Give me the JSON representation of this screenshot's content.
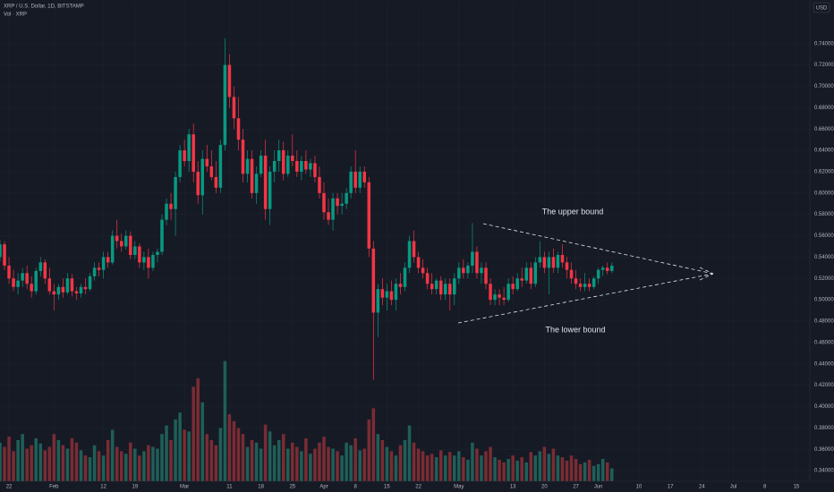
{
  "chart_data": {
    "type": "candlestick",
    "title": "XRP / U.S. Dollar, 1D, BITSTAMP",
    "subtitle": "Vol · XRP",
    "currency": "USD",
    "annotations": [
      "The upper bound",
      "The lower bound"
    ],
    "up_color": "#089981",
    "down_color": "#f23645",
    "volume_up_color": "#1f5f58",
    "volume_down_color": "#7a2c33",
    "grid": true,
    "xlim": [
      0,
      180
    ],
    "xticks": [
      {
        "value": 2,
        "label": "22"
      },
      {
        "value": 12,
        "label": "Feb"
      },
      {
        "value": 23,
        "label": "12"
      },
      {
        "value": 30,
        "label": "19"
      },
      {
        "value": 41,
        "label": "Mar"
      },
      {
        "value": 51,
        "label": "11"
      },
      {
        "value": 58,
        "label": "18"
      },
      {
        "value": 65,
        "label": "25"
      },
      {
        "value": 72,
        "label": "Apr"
      },
      {
        "value": 79,
        "label": "8"
      },
      {
        "value": 86,
        "label": "15"
      },
      {
        "value": 93,
        "label": "22"
      },
      {
        "value": 102,
        "label": "May"
      },
      {
        "value": 114,
        "label": "13"
      },
      {
        "value": 121,
        "label": "20"
      },
      {
        "value": 128,
        "label": "27"
      },
      {
        "value": 133,
        "label": "Jun"
      },
      {
        "value": 142,
        "label": "10"
      },
      {
        "value": 149,
        "label": "17"
      },
      {
        "value": 156,
        "label": "24"
      },
      {
        "value": 163,
        "label": "Jul"
      },
      {
        "value": 170,
        "label": "8"
      },
      {
        "value": 177,
        "label": "15"
      }
    ],
    "ylim": [
      0.33,
      0.78
    ],
    "yticks": [
      {
        "value": 0.34,
        "label": "0.34000"
      },
      {
        "value": 0.36,
        "label": "0.36000"
      },
      {
        "value": 0.38,
        "label": "0.38000"
      },
      {
        "value": 0.4,
        "label": "0.40000"
      },
      {
        "value": 0.42,
        "label": "0.42000"
      },
      {
        "value": 0.44,
        "label": "0.44000"
      },
      {
        "value": 0.46,
        "label": "0.46000"
      },
      {
        "value": 0.48,
        "label": "0.48000"
      },
      {
        "value": 0.5,
        "label": "0.50000"
      },
      {
        "value": 0.52,
        "label": "0.52000"
      },
      {
        "value": 0.54,
        "label": "0.54000"
      },
      {
        "value": 0.56,
        "label": "0.56000"
      },
      {
        "value": 0.58,
        "label": "0.58000"
      },
      {
        "value": 0.6,
        "label": "0.60000"
      },
      {
        "value": 0.62,
        "label": "0.62000"
      },
      {
        "value": 0.64,
        "label": "0.64000"
      },
      {
        "value": 0.66,
        "label": "0.66000"
      },
      {
        "value": 0.68,
        "label": "0.68000"
      },
      {
        "value": 0.7,
        "label": "0.70000"
      },
      {
        "value": 0.72,
        "label": "0.72000"
      },
      {
        "value": 0.74,
        "label": "0.74000"
      }
    ],
    "volume_lim": [
      0,
      300
    ],
    "ohlc": [
      [
        0.54,
        0.556,
        0.536,
        0.552
      ],
      [
        0.552,
        0.555,
        0.528,
        0.532
      ],
      [
        0.532,
        0.54,
        0.515,
        0.52
      ],
      [
        0.52,
        0.528,
        0.508,
        0.512
      ],
      [
        0.512,
        0.525,
        0.505,
        0.518
      ],
      [
        0.518,
        0.53,
        0.512,
        0.525
      ],
      [
        0.525,
        0.532,
        0.51,
        0.515
      ],
      [
        0.515,
        0.522,
        0.502,
        0.508
      ],
      [
        0.508,
        0.53,
        0.505,
        0.527
      ],
      [
        0.527,
        0.54,
        0.522,
        0.535
      ],
      [
        0.535,
        0.538,
        0.515,
        0.52
      ],
      [
        0.52,
        0.53,
        0.505,
        0.508
      ],
      [
        0.508,
        0.515,
        0.49,
        0.505
      ],
      [
        0.505,
        0.515,
        0.5,
        0.512
      ],
      [
        0.512,
        0.52,
        0.502,
        0.507
      ],
      [
        0.507,
        0.525,
        0.505,
        0.52
      ],
      [
        0.52,
        0.524,
        0.503,
        0.508
      ],
      [
        0.508,
        0.512,
        0.5,
        0.506
      ],
      [
        0.506,
        0.515,
        0.502,
        0.512
      ],
      [
        0.512,
        0.52,
        0.505,
        0.51
      ],
      [
        0.51,
        0.525,
        0.508,
        0.522
      ],
      [
        0.522,
        0.535,
        0.518,
        0.53
      ],
      [
        0.53,
        0.535,
        0.522,
        0.528
      ],
      [
        0.528,
        0.545,
        0.52,
        0.54
      ],
      [
        0.54,
        0.545,
        0.53,
        0.535
      ],
      [
        0.535,
        0.565,
        0.533,
        0.56
      ],
      [
        0.56,
        0.575,
        0.548,
        0.555
      ],
      [
        0.555,
        0.562,
        0.545,
        0.55
      ],
      [
        0.55,
        0.565,
        0.547,
        0.56
      ],
      [
        0.56,
        0.564,
        0.538,
        0.542
      ],
      [
        0.542,
        0.555,
        0.538,
        0.55
      ],
      [
        0.55,
        0.553,
        0.53,
        0.535
      ],
      [
        0.535,
        0.545,
        0.528,
        0.54
      ],
      [
        0.54,
        0.548,
        0.52,
        0.53
      ],
      [
        0.53,
        0.545,
        0.527,
        0.542
      ],
      [
        0.542,
        0.548,
        0.535,
        0.545
      ],
      [
        0.545,
        0.58,
        0.542,
        0.575
      ],
      [
        0.575,
        0.595,
        0.57,
        0.59
      ],
      [
        0.59,
        0.6,
        0.575,
        0.585
      ],
      [
        0.585,
        0.62,
        0.56,
        0.615
      ],
      [
        0.615,
        0.645,
        0.61,
        0.64
      ],
      [
        0.64,
        0.65,
        0.625,
        0.63
      ],
      [
        0.63,
        0.66,
        0.62,
        0.655
      ],
      [
        0.655,
        0.665,
        0.61,
        0.62
      ],
      [
        0.62,
        0.63,
        0.59,
        0.598
      ],
      [
        0.598,
        0.64,
        0.58,
        0.632
      ],
      [
        0.632,
        0.645,
        0.62,
        0.625
      ],
      [
        0.625,
        0.64,
        0.612,
        0.615
      ],
      [
        0.615,
        0.63,
        0.6,
        0.605
      ],
      [
        0.605,
        0.65,
        0.6,
        0.645
      ],
      [
        0.645,
        0.745,
        0.64,
        0.72
      ],
      [
        0.72,
        0.73,
        0.68,
        0.69
      ],
      [
        0.69,
        0.7,
        0.66,
        0.67
      ],
      [
        0.67,
        0.69,
        0.64,
        0.65
      ],
      [
        0.65,
        0.66,
        0.61,
        0.618
      ],
      [
        0.618,
        0.64,
        0.61,
        0.632
      ],
      [
        0.632,
        0.64,
        0.595,
        0.6
      ],
      [
        0.6,
        0.625,
        0.59,
        0.618
      ],
      [
        0.618,
        0.64,
        0.615,
        0.635
      ],
      [
        0.635,
        0.65,
        0.575,
        0.585
      ],
      [
        0.585,
        0.625,
        0.57,
        0.62
      ],
      [
        0.62,
        0.64,
        0.61,
        0.63
      ],
      [
        0.63,
        0.65,
        0.62,
        0.64
      ],
      [
        0.64,
        0.648,
        0.612,
        0.618
      ],
      [
        0.618,
        0.64,
        0.615,
        0.635
      ],
      [
        0.635,
        0.655,
        0.625,
        0.63
      ],
      [
        0.63,
        0.64,
        0.615,
        0.62
      ],
      [
        0.62,
        0.635,
        0.612,
        0.63
      ],
      [
        0.63,
        0.64,
        0.618,
        0.622
      ],
      [
        0.622,
        0.632,
        0.615,
        0.628
      ],
      [
        0.628,
        0.635,
        0.61,
        0.615
      ],
      [
        0.615,
        0.625,
        0.595,
        0.6
      ],
      [
        0.6,
        0.61,
        0.575,
        0.582
      ],
      [
        0.582,
        0.595,
        0.57,
        0.575
      ],
      [
        0.575,
        0.6,
        0.565,
        0.595
      ],
      [
        0.595,
        0.6,
        0.58,
        0.588
      ],
      [
        0.588,
        0.6,
        0.58,
        0.59
      ],
      [
        0.59,
        0.605,
        0.585,
        0.6
      ],
      [
        0.6,
        0.625,
        0.595,
        0.62
      ],
      [
        0.62,
        0.64,
        0.6,
        0.605
      ],
      [
        0.605,
        0.625,
        0.6,
        0.62
      ],
      [
        0.62,
        0.625,
        0.605,
        0.61
      ],
      [
        0.61,
        0.615,
        0.54,
        0.548
      ],
      [
        0.548,
        0.555,
        0.425,
        0.488
      ],
      [
        0.488,
        0.515,
        0.465,
        0.51
      ],
      [
        0.51,
        0.52,
        0.495,
        0.502
      ],
      [
        0.502,
        0.515,
        0.49,
        0.508
      ],
      [
        0.508,
        0.518,
        0.495,
        0.5
      ],
      [
        0.5,
        0.52,
        0.49,
        0.515
      ],
      [
        0.515,
        0.525,
        0.505,
        0.512
      ],
      [
        0.512,
        0.535,
        0.508,
        0.53
      ],
      [
        0.53,
        0.56,
        0.525,
        0.555
      ],
      [
        0.555,
        0.565,
        0.535,
        0.54
      ],
      [
        0.54,
        0.545,
        0.525,
        0.53
      ],
      [
        0.53,
        0.538,
        0.52,
        0.525
      ],
      [
        0.525,
        0.53,
        0.51,
        0.515
      ],
      [
        0.515,
        0.525,
        0.505,
        0.51
      ],
      [
        0.51,
        0.52,
        0.505,
        0.518
      ],
      [
        0.518,
        0.522,
        0.5,
        0.505
      ],
      [
        0.505,
        0.52,
        0.5,
        0.515
      ],
      [
        0.515,
        0.52,
        0.49,
        0.505
      ],
      [
        0.505,
        0.525,
        0.495,
        0.52
      ],
      [
        0.52,
        0.535,
        0.515,
        0.53
      ],
      [
        0.53,
        0.538,
        0.52,
        0.525
      ],
      [
        0.525,
        0.535,
        0.52,
        0.532
      ],
      [
        0.532,
        0.572,
        0.525,
        0.545
      ],
      [
        0.545,
        0.55,
        0.52,
        0.525
      ],
      [
        0.525,
        0.535,
        0.515,
        0.53
      ],
      [
        0.53,
        0.535,
        0.51,
        0.515
      ],
      [
        0.515,
        0.52,
        0.495,
        0.5
      ],
      [
        0.5,
        0.51,
        0.495,
        0.505
      ],
      [
        0.505,
        0.51,
        0.495,
        0.502
      ],
      [
        0.502,
        0.512,
        0.495,
        0.5
      ],
      [
        0.5,
        0.52,
        0.498,
        0.515
      ],
      [
        0.515,
        0.522,
        0.505,
        0.51
      ],
      [
        0.51,
        0.525,
        0.508,
        0.52
      ],
      [
        0.52,
        0.53,
        0.512,
        0.518
      ],
      [
        0.518,
        0.535,
        0.515,
        0.53
      ],
      [
        0.53,
        0.535,
        0.51,
        0.515
      ],
      [
        0.515,
        0.54,
        0.512,
        0.535
      ],
      [
        0.535,
        0.555,
        0.53,
        0.54
      ],
      [
        0.54,
        0.545,
        0.525,
        0.53
      ],
      [
        0.53,
        0.545,
        0.505,
        0.54
      ],
      [
        0.54,
        0.548,
        0.525,
        0.53
      ],
      [
        0.53,
        0.545,
        0.525,
        0.542
      ],
      [
        0.542,
        0.552,
        0.53,
        0.535
      ],
      [
        0.535,
        0.54,
        0.52,
        0.528
      ],
      [
        0.528,
        0.535,
        0.515,
        0.52
      ],
      [
        0.52,
        0.528,
        0.51,
        0.515
      ],
      [
        0.515,
        0.52,
        0.508,
        0.512
      ],
      [
        0.512,
        0.525,
        0.508,
        0.515
      ],
      [
        0.515,
        0.52,
        0.508,
        0.512
      ],
      [
        0.512,
        0.522,
        0.51,
        0.52
      ],
      [
        0.52,
        0.53,
        0.515,
        0.528
      ],
      [
        0.528,
        0.532,
        0.522,
        0.53
      ],
      [
        0.53,
        0.535,
        0.524,
        0.527
      ],
      [
        0.527,
        0.535,
        0.525,
        0.532
      ]
    ],
    "volume": [
      45,
      40,
      52,
      35,
      48,
      55,
      38,
      42,
      50,
      44,
      36,
      40,
      55,
      48,
      42,
      38,
      50,
      45,
      36,
      30,
      28,
      42,
      35,
      30,
      48,
      60,
      40,
      35,
      32,
      45,
      38,
      30,
      35,
      42,
      40,
      38,
      55,
      65,
      48,
      72,
      80,
      60,
      58,
      110,
      120,
      92,
      55,
      48,
      42,
      62,
      140,
      78,
      70,
      62,
      55,
      40,
      48,
      45,
      38,
      66,
      58,
      42,
      48,
      55,
      38,
      45,
      40,
      35,
      50,
      32,
      38,
      45,
      52,
      40,
      38,
      35,
      30,
      45,
      42,
      50,
      36,
      38,
      72,
      85,
      55,
      48,
      40,
      35,
      30,
      42,
      48,
      65,
      45,
      38,
      35,
      30,
      32,
      28,
      36,
      30,
      34,
      30,
      35,
      28,
      25,
      45,
      38,
      30,
      35,
      40,
      28,
      25,
      22,
      26,
      30,
      24,
      28,
      22,
      34,
      30,
      35,
      40,
      32,
      38,
      30,
      28,
      24,
      30,
      26,
      20,
      22,
      25,
      18,
      20,
      26,
      22,
      15
    ]
  }
}
